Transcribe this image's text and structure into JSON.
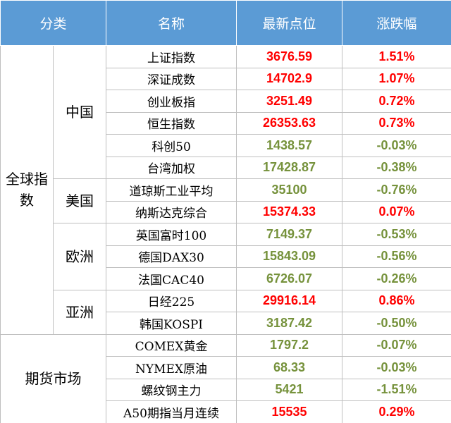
{
  "header": [
    "分类",
    "名称",
    "最新点位",
    "涨跌幅"
  ],
  "groups": [
    {
      "label": "全球指数",
      "subgroups": [
        {
          "label": "中国",
          "rows": [
            {
              "name": "上证指数",
              "value": "3676.59",
              "change": "1.51%",
              "color": "#ff0000"
            },
            {
              "name": "深证成数",
              "value": "14702.9",
              "change": "1.07%",
              "color": "#ff0000"
            },
            {
              "name": "创业板指",
              "value": "3251.49",
              "change": "0.72%",
              "color": "#ff0000"
            },
            {
              "name": "恒生指数",
              "value": "26353.63",
              "change": "0.73%",
              "color": "#ff0000"
            },
            {
              "name": "科创50",
              "value": "1438.57",
              "change": "-0.03%",
              "color": "#76923c"
            },
            {
              "name": "台湾加权",
              "value": "17428.87",
              "change": "-0.38%",
              "color": "#76923c"
            }
          ]
        },
        {
          "label": "美国",
          "rows": [
            {
              "name": "道琼斯工业平均",
              "value": "35100",
              "change": "-0.76%",
              "color": "#76923c"
            },
            {
              "name": "纳斯达克综合",
              "value": "15374.33",
              "change": "0.07%",
              "color": "#ff0000"
            }
          ]
        },
        {
          "label": "欧洲",
          "rows": [
            {
              "name": "英国富时100",
              "value": "7149.37",
              "change": "-0.53%",
              "color": "#76923c"
            },
            {
              "name": "德国DAX30",
              "value": "15843.09",
              "change": "-0.56%",
              "color": "#76923c"
            },
            {
              "name": "法国CAC40",
              "value": "6726.07",
              "change": "-0.26%",
              "color": "#76923c"
            }
          ]
        },
        {
          "label": "亚洲",
          "rows": [
            {
              "name": "日经225",
              "value": "29916.14",
              "change": "0.86%",
              "color": "#ff0000"
            },
            {
              "name": "韩国KOSPI",
              "value": "3187.42",
              "change": "-0.50%",
              "color": "#76923c"
            }
          ]
        }
      ]
    },
    {
      "label": "期货市场",
      "rows": [
        {
          "name": "COMEX黄金",
          "value": "1797.2",
          "change": "-0.07%",
          "color": "#76923c"
        },
        {
          "name": "NYMEX原油",
          "value": "68.33",
          "change": "-0.03%",
          "color": "#76923c"
        },
        {
          "name": "螺纹钢主力",
          "value": "5421",
          "change": "-1.51%",
          "color": "#76923c"
        },
        {
          "name": "A50期指当月连续",
          "value": "15535",
          "change": "0.29%",
          "color": "#ff0000"
        }
      ]
    }
  ]
}
